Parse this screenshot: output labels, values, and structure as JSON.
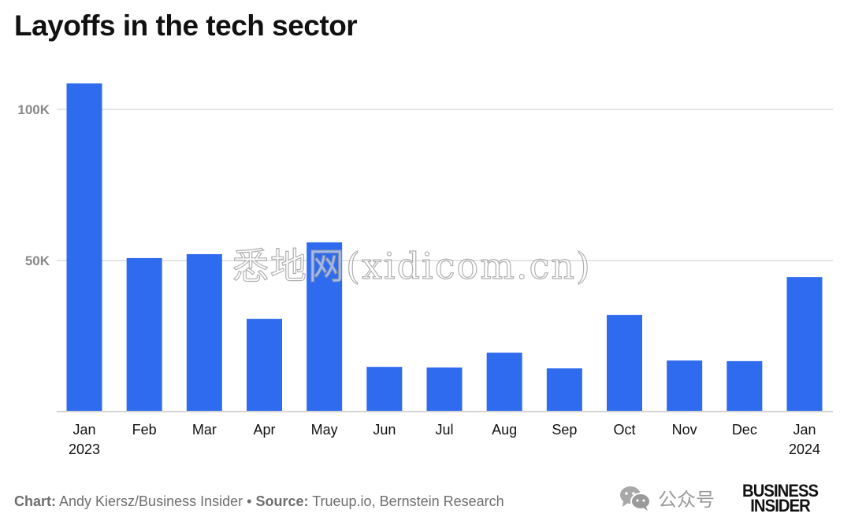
{
  "chart_data": {
    "type": "bar",
    "title": "Layoffs in the tech sector",
    "xlabel": "",
    "ylabel": "",
    "categories": [
      "Jan 2023",
      "Feb",
      "Mar",
      "Apr",
      "May",
      "Jun",
      "Jul",
      "Aug",
      "Sep",
      "Oct",
      "Nov",
      "Dec",
      "Jan 2024"
    ],
    "category_lines": [
      [
        "Jan",
        "2023"
      ],
      [
        "Feb"
      ],
      [
        "Mar"
      ],
      [
        "Apr"
      ],
      [
        "May"
      ],
      [
        "Jun"
      ],
      [
        "Jul"
      ],
      [
        "Aug"
      ],
      [
        "Sep"
      ],
      [
        "Oct"
      ],
      [
        "Nov"
      ],
      [
        "Dec"
      ],
      [
        "Jan",
        "2024"
      ]
    ],
    "values": [
      108600,
      50800,
      52100,
      30700,
      56000,
      14800,
      14600,
      19500,
      14300,
      32000,
      16900,
      16700,
      44500
    ],
    "ylim": [
      0,
      110000
    ],
    "yticks": [
      50000,
      100000
    ],
    "ytick_labels": [
      "50K",
      "100K"
    ],
    "grid": true,
    "bar_color": "#2f6bef",
    "grid_color": "#d4d4d4"
  },
  "footer": {
    "chart_label": "Chart:",
    "chart_credit": "Andy Kiersz/Business Insider",
    "separator": "•",
    "source_label": "Source:",
    "source_text": "Trueup.io, Bernstein Research"
  },
  "branding": {
    "logo_line1": "BUSINESS",
    "logo_line2": "INSIDER",
    "wechat_label": "公众号",
    "watermark": "悉地网(xidicom.cn)"
  }
}
